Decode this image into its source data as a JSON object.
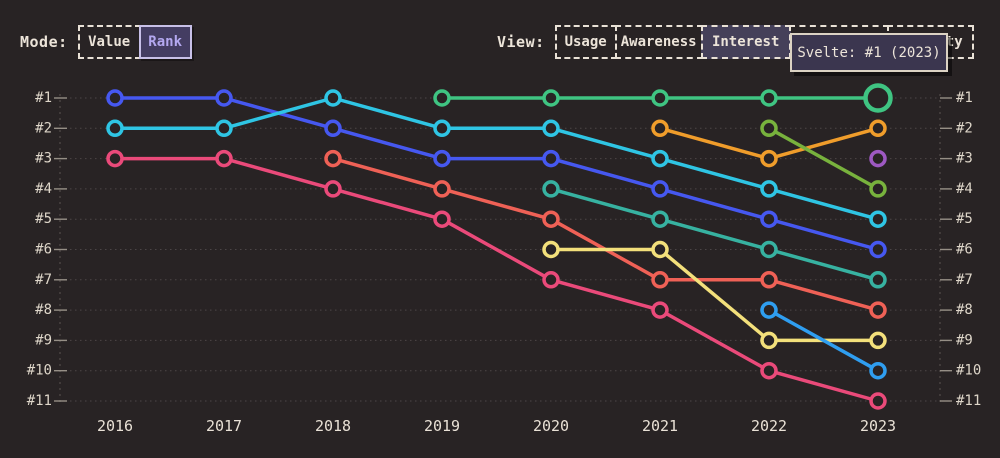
{
  "header": {
    "mode": {
      "label": "Mode:",
      "options": [
        {
          "label": "Value",
          "selected": false
        },
        {
          "label": "Rank",
          "selected": true
        }
      ]
    },
    "view": {
      "label": "View:",
      "options": [
        {
          "label": "Usage",
          "selected": false
        },
        {
          "label": "Awareness",
          "selected": false
        },
        {
          "label": "Interest",
          "selected": true
        },
        {
          "label": "",
          "selected": false,
          "hidden_by_tooltip": true
        },
        {
          "label": "ty",
          "selected": false,
          "hidden_by_tooltip": true,
          "truncated": true
        }
      ]
    }
  },
  "tooltip": {
    "text": "Svelte: #1 (2023)"
  },
  "colors": {
    "background": "#282324",
    "text": "#ece4d9",
    "gridline": "#4c4647",
    "tick": "#968f86",
    "axis_dashed": "#5a5351",
    "tooltip_bg": "#3b364f",
    "tooltip_border": "#dcd3c4",
    "selected_view_bg": "#454059",
    "selected_mode_bg": "#443d62",
    "selected_mode_text": "#b4a8f0"
  },
  "chart_data": {
    "type": "line",
    "subtype": "bump-rank-chart",
    "title": "",
    "xlabel": "",
    "ylabel": "",
    "x": [
      2016,
      2017,
      2018,
      2019,
      2020,
      2021,
      2022,
      2023
    ],
    "x_tick_labels": [
      "2016",
      "2017",
      "2018",
      "2019",
      "2020",
      "2021",
      "2022",
      "2023"
    ],
    "rank_labels": [
      "#1",
      "#2",
      "#3",
      "#4",
      "#5",
      "#6",
      "#7",
      "#8",
      "#9",
      "#10",
      "#11"
    ],
    "ylim": [
      1,
      11
    ],
    "y_axis_inverted": true,
    "grid": "dotted-horizontal",
    "legend_position": "none",
    "series": [
      {
        "name": "blue",
        "color": "#4658f0",
        "ranks": [
          1,
          1,
          2,
          3,
          3,
          4,
          5,
          6
        ]
      },
      {
        "name": "cyan",
        "color": "#2fc5e4",
        "ranks": [
          2,
          2,
          1,
          2,
          2,
          3,
          4,
          5
        ]
      },
      {
        "name": "pink",
        "color": "#ea4a7a",
        "ranks": [
          3,
          3,
          4,
          5,
          7,
          8,
          10,
          11
        ]
      },
      {
        "name": "coral",
        "color": "#ef6156",
        "ranks": [
          null,
          null,
          3,
          4,
          5,
          7,
          7,
          8
        ]
      },
      {
        "name": "svelte",
        "color": "#3fc482",
        "ranks": [
          null,
          null,
          null,
          1,
          1,
          1,
          1,
          1
        ]
      },
      {
        "name": "teal",
        "color": "#37b2a1",
        "ranks": [
          null,
          null,
          null,
          null,
          4,
          5,
          6,
          7
        ]
      },
      {
        "name": "yellow",
        "color": "#f3e07b",
        "ranks": [
          null,
          null,
          null,
          null,
          6,
          6,
          9,
          9
        ]
      },
      {
        "name": "amber",
        "color": "#f09d2b",
        "ranks": [
          null,
          null,
          null,
          null,
          null,
          2,
          3,
          2
        ]
      },
      {
        "name": "olive",
        "color": "#78b23d",
        "ranks": [
          null,
          null,
          null,
          null,
          null,
          null,
          2,
          4
        ]
      },
      {
        "name": "sky",
        "color": "#2f9ef0",
        "ranks": [
          null,
          null,
          null,
          null,
          null,
          null,
          8,
          10
        ]
      },
      {
        "name": "purple",
        "color": "#9e59c2",
        "ranks": [
          null,
          null,
          null,
          null,
          null,
          null,
          null,
          3
        ]
      }
    ],
    "highlight": {
      "series": "svelte",
      "year": 2023,
      "rank": 1,
      "tooltip": "Svelte: #1 (2023)"
    }
  }
}
